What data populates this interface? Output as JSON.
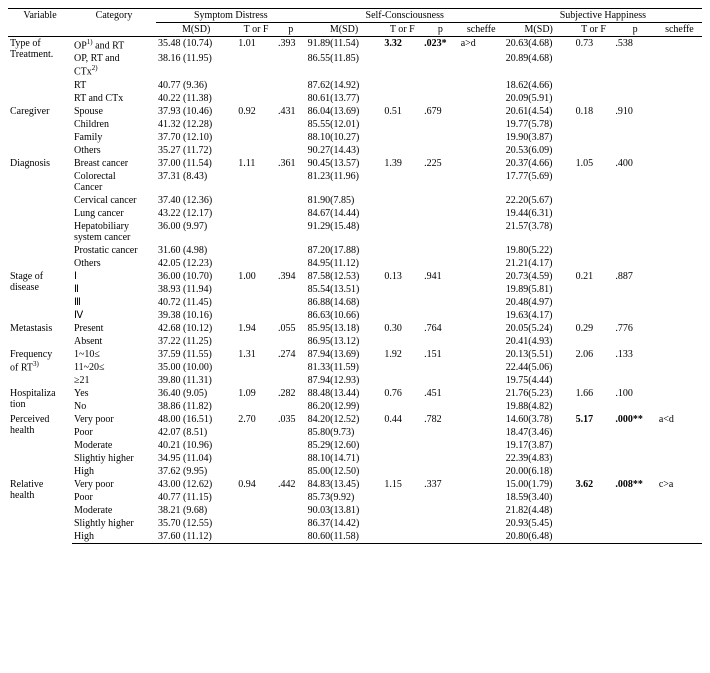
{
  "headers": {
    "variable": "Variable",
    "category": "Category",
    "groups": [
      "Symptom Distress",
      "Self-Consciousness",
      "Subjective   Happiness"
    ],
    "sub": {
      "msd": "M(SD)",
      "tf": "T or\nF",
      "p": "p",
      "scheffe": "scheffe"
    }
  },
  "vars": [
    {
      "name": "Type of\nTreatment.",
      "rows": [
        {
          "cat": "OP1) and RT",
          "sd": [
            "35.48 (10.74)",
            "1.01",
            ".393"
          ],
          "sc": [
            "91.89(11.54)",
            "3.32",
            ".023*",
            "a>d"
          ],
          "sh": [
            "20.63(4.68)",
            "0.73",
            ".538",
            ""
          ],
          "supcat": "OP<sup>1)</sup> and RT"
        },
        {
          "cat": "OP, RT and CTx2)",
          "supcat": "OP, RT and\nCTx<sup>2)</sup>",
          "sd": [
            "38.16 (11.95)",
            "",
            ""
          ],
          "sc": [
            "86.55(11.85)",
            "",
            "",
            ""
          ],
          "sh": [
            "20.89(4.68)",
            "",
            "",
            ""
          ]
        },
        {
          "cat": "RT",
          "sd": [
            "40.77 (9.36)",
            "",
            ""
          ],
          "sc": [
            "87.62(14.92)",
            "",
            "",
            ""
          ],
          "sh": [
            "18.62(4.66)",
            "",
            "",
            ""
          ]
        },
        {
          "cat": "RT and CTx",
          "sd": [
            "40.22 (11.38)",
            "",
            ""
          ],
          "sc": [
            "80.61(13.77)",
            "",
            "",
            ""
          ],
          "sh": [
            "20.09(5.91)",
            "",
            "",
            ""
          ]
        }
      ]
    },
    {
      "name": "Caregiver",
      "rows": [
        {
          "cat": "Spouse",
          "sd": [
            "37.93 (10.46)",
            "0.92",
            ".431"
          ],
          "sc": [
            "86.04(13.69)",
            "0.51",
            ".679",
            ""
          ],
          "sh": [
            "20.61(4.54)",
            "0.18",
            ".910",
            ""
          ]
        },
        {
          "cat": "Children",
          "sd": [
            "41.32 (12.28)",
            "",
            ""
          ],
          "sc": [
            "85.55(12.01)",
            "",
            "",
            ""
          ],
          "sh": [
            "19.77(5.78)",
            "",
            "",
            ""
          ]
        },
        {
          "cat": "Family",
          "sd": [
            "37.70 (12.10)",
            "",
            ""
          ],
          "sc": [
            "88.10(10.27)",
            "",
            "",
            ""
          ],
          "sh": [
            "19.90(3.87)",
            "",
            "",
            ""
          ]
        },
        {
          "cat": "Others",
          "sd": [
            "35.27 (11.72)",
            "",
            ""
          ],
          "sc": [
            "90.27(14.43)",
            "",
            "",
            ""
          ],
          "sh": [
            "20.53(6.09)",
            "",
            "",
            ""
          ]
        }
      ]
    },
    {
      "name": "Diagnosis",
      "rows": [
        {
          "cat": "Breast cancer",
          "sd": [
            "37.00 (11.54)",
            "1.11",
            ".361"
          ],
          "sc": [
            "90.45(13.57)",
            "1.39",
            ".225",
            ""
          ],
          "sh": [
            "20.37(4.66)",
            "1.05",
            ".400",
            ""
          ]
        },
        {
          "cat": "Colorectal\nCancer",
          "sd": [
            "37.31 (8.43)",
            "",
            ""
          ],
          "sc": [
            "81.23(11.96)",
            "",
            "",
            ""
          ],
          "sh": [
            "17.77(5.69)",
            "",
            "",
            ""
          ]
        },
        {
          "cat": "Cervical cancer",
          "sd": [
            "37.40 (12.36)",
            "",
            ""
          ],
          "sc": [
            "81.90(7.85)",
            "",
            "",
            ""
          ],
          "sh": [
            "22.20(5.67)",
            "",
            "",
            ""
          ]
        },
        {
          "cat": "Lung cancer",
          "sd": [
            "43.22 (12.17)",
            "",
            ""
          ],
          "sc": [
            "84.67(14.44)",
            "",
            "",
            ""
          ],
          "sh": [
            "19.44(6.31)",
            "",
            "",
            ""
          ]
        },
        {
          "cat": "Hepatobiliary\n system cancer",
          "sd": [
            "36.00 (9.97)",
            "",
            ""
          ],
          "sc": [
            "91.29(15.48)",
            "",
            "",
            ""
          ],
          "sh": [
            "21.57(3.78)",
            "",
            "",
            ""
          ]
        },
        {
          "cat": "Prostatic cancer",
          "sd": [
            "31.60 (4.98)",
            "",
            ""
          ],
          "sc": [
            "87.20(17.88)",
            "",
            "",
            ""
          ],
          "sh": [
            "19.80(5.22)",
            "",
            "",
            ""
          ]
        },
        {
          "cat": "Others",
          "sd": [
            "42.05 (12.23)",
            "",
            ""
          ],
          "sc": [
            "84.95(11.12)",
            "",
            "",
            ""
          ],
          "sh": [
            "21.21(4.17)",
            "",
            "",
            ""
          ]
        }
      ]
    },
    {
      "name": "Stage of\ndisease",
      "rows": [
        {
          "cat": "Ⅰ",
          "sd": [
            "36.00 (10.70)",
            "1.00",
            ".394"
          ],
          "sc": [
            "87.58(12.53)",
            "0.13",
            ".941",
            ""
          ],
          "sh": [
            "20.73(4.59)",
            "0.21",
            ".887",
            ""
          ]
        },
        {
          "cat": "Ⅱ",
          "sd": [
            "38.93 (11.94)",
            "",
            ""
          ],
          "sc": [
            "85.54(13.51)",
            "",
            "",
            ""
          ],
          "sh": [
            "19.89(5.81)",
            "",
            "",
            ""
          ]
        },
        {
          "cat": "Ⅲ",
          "sd": [
            "40.72 (11.45)",
            "",
            ""
          ],
          "sc": [
            "86.88(14.68)",
            "",
            "",
            ""
          ],
          "sh": [
            "20.48(4.97)",
            "",
            "",
            ""
          ]
        },
        {
          "cat": "Ⅳ",
          "sd": [
            "39.38 (10.16)",
            "",
            ""
          ],
          "sc": [
            "86.63(10.66)",
            "",
            "",
            ""
          ],
          "sh": [
            "19.63(4.17)",
            "",
            "",
            ""
          ]
        }
      ]
    },
    {
      "name": "Metastasis",
      "rows": [
        {
          "cat": "Present",
          "sd": [
            "42.68 (10.12)",
            "1.94",
            ".055"
          ],
          "sc": [
            "85.95(13.18)",
            "0.30",
            ".764",
            ""
          ],
          "sh": [
            "20.05(5.24)",
            "0.29",
            ".776",
            ""
          ]
        },
        {
          "cat": "Absent",
          "sd": [
            "37.22 (11.25)",
            "",
            ""
          ],
          "sc": [
            "86.95(13.12)",
            "",
            "",
            ""
          ],
          "sh": [
            "20.41(4.93)",
            "",
            "",
            ""
          ]
        }
      ]
    },
    {
      "name": "Frequency\nof RT3)",
      "supname": "Frequency\nof RT<sup>3)</sup>",
      "rows": [
        {
          "cat": "1~10≤",
          "sd": [
            "37.59 (11.55)",
            "1.31",
            ".274"
          ],
          "sc": [
            "87.94(13.69)",
            "1.92",
            ".151",
            ""
          ],
          "sh": [
            "20.13(5.51)",
            "2.06",
            ".133",
            ""
          ]
        },
        {
          "cat": "11~20≤",
          "sd": [
            "35.00 (10.00)",
            "",
            ""
          ],
          "sc": [
            "81.33(11.59)",
            "",
            "",
            ""
          ],
          "sh": [
            "22.44(5.06)",
            "",
            "",
            ""
          ]
        },
        {
          "cat": "≥21",
          "sd": [
            "39.80 (11.31)",
            "",
            ""
          ],
          "sc": [
            "87.94(12.93)",
            "",
            "",
            ""
          ],
          "sh": [
            "19.75(4.44)",
            "",
            "",
            ""
          ]
        }
      ]
    },
    {
      "name": "Hospitaliza\ntion",
      "rows": [
        {
          "cat": "Yes",
          "sd": [
            "36.40 (9.05)",
            "1.09",
            ".282"
          ],
          "sc": [
            "88.48(13.44)",
            "0.76",
            ".451",
            ""
          ],
          "sh": [
            "21.76(5.23)",
            "1.66",
            ".100",
            ""
          ]
        },
        {
          "cat": "No",
          "sd": [
            "38.86 (11.82)",
            "",
            ""
          ],
          "sc": [
            "86.20(12.99)",
            "",
            "",
            ""
          ],
          "sh": [
            "19.88(4.82)",
            "",
            "",
            ""
          ]
        }
      ]
    },
    {
      "name": "Perceived\nhealth",
      "rows": [
        {
          "cat": "Very poor",
          "sd": [
            "48.00 (16.51)",
            "2.70",
            ".035"
          ],
          "sc": [
            "84.20(12.52)",
            "0.44",
            ".782",
            ""
          ],
          "sh": [
            "14.60(3.78)",
            "5.17",
            ".000**",
            "a<d"
          ]
        },
        {
          "cat": "Poor",
          "sd": [
            "42.07 (8.51)",
            "",
            ""
          ],
          "sc": [
            "85.80(9.73)",
            "",
            "",
            ""
          ],
          "sh": [
            "18.47(3.46)",
            "",
            "",
            ""
          ]
        },
        {
          "cat": "Moderate",
          "sd": [
            "40.21 (10.96)",
            "",
            ""
          ],
          "sc": [
            "85.29(12.60)",
            "",
            "",
            ""
          ],
          "sh": [
            "19.17(3.87)",
            "",
            "",
            ""
          ]
        },
        {
          "cat": "Slightiy higher",
          "sd": [
            "34.95 (11.04)",
            "",
            ""
          ],
          "sc": [
            "88.10(14.71)",
            "",
            "",
            ""
          ],
          "sh": [
            "22.39(4.83)",
            "",
            "",
            ""
          ]
        },
        {
          "cat": "High",
          "sd": [
            "37.62 (9.95)",
            "",
            ""
          ],
          "sc": [
            "85.00(12.50)",
            "",
            "",
            ""
          ],
          "sh": [
            "20.00(6.18)",
            "",
            "",
            ""
          ]
        }
      ]
    },
    {
      "name": "Relative\nhealth",
      "rows": [
        {
          "cat": "Very poor",
          "sd": [
            "43.00 (12.62)",
            "0.94",
            ".442"
          ],
          "sc": [
            "84.83(13.45)",
            "1.15",
            ".337",
            ""
          ],
          "sh": [
            "15.00(1.79)",
            "3.62",
            ".008**",
            "c>a"
          ]
        },
        {
          "cat": "Poor",
          "sd": [
            "40.77 (11.15)",
            "",
            ""
          ],
          "sc": [
            "85.73(9.92)",
            "",
            "",
            ""
          ],
          "sh": [
            "18.59(3.40)",
            "",
            "",
            ""
          ]
        },
        {
          "cat": "Moderate",
          "sd": [
            "38.21 (9.68)",
            "",
            ""
          ],
          "sc": [
            "90.03(13.81)",
            "",
            "",
            ""
          ],
          "sh": [
            "21.82(4.48)",
            "",
            "",
            ""
          ]
        },
        {
          "cat": "Slightly higher",
          "sd": [
            "35.70 (12.55)",
            "",
            ""
          ],
          "sc": [
            "86.37(14.42)",
            "",
            "",
            ""
          ],
          "sh": [
            "20.93(5.45)",
            "",
            "",
            ""
          ]
        },
        {
          "cat": "High",
          "sd": [
            "37.60 (11.12)",
            "",
            ""
          ],
          "sc": [
            "80.60(11.58)",
            "",
            "",
            ""
          ],
          "sh": [
            "20.80(6.48)",
            "",
            "",
            ""
          ]
        }
      ]
    }
  ],
  "boldCells": {
    "Type of\nTreatment.|OP1) and RT|sc1": "3.32",
    "Type of\nTreatment.|OP1) and RT|sc2": ".023*",
    "Perceived\nhealth|Very poor|sh1": "5.17",
    "Perceived\nhealth|Very poor|sh2": ".000**",
    "Relative\nhealth|Very poor|sh1": "3.62",
    "Relative\nhealth|Very poor|sh2": ".008**"
  }
}
